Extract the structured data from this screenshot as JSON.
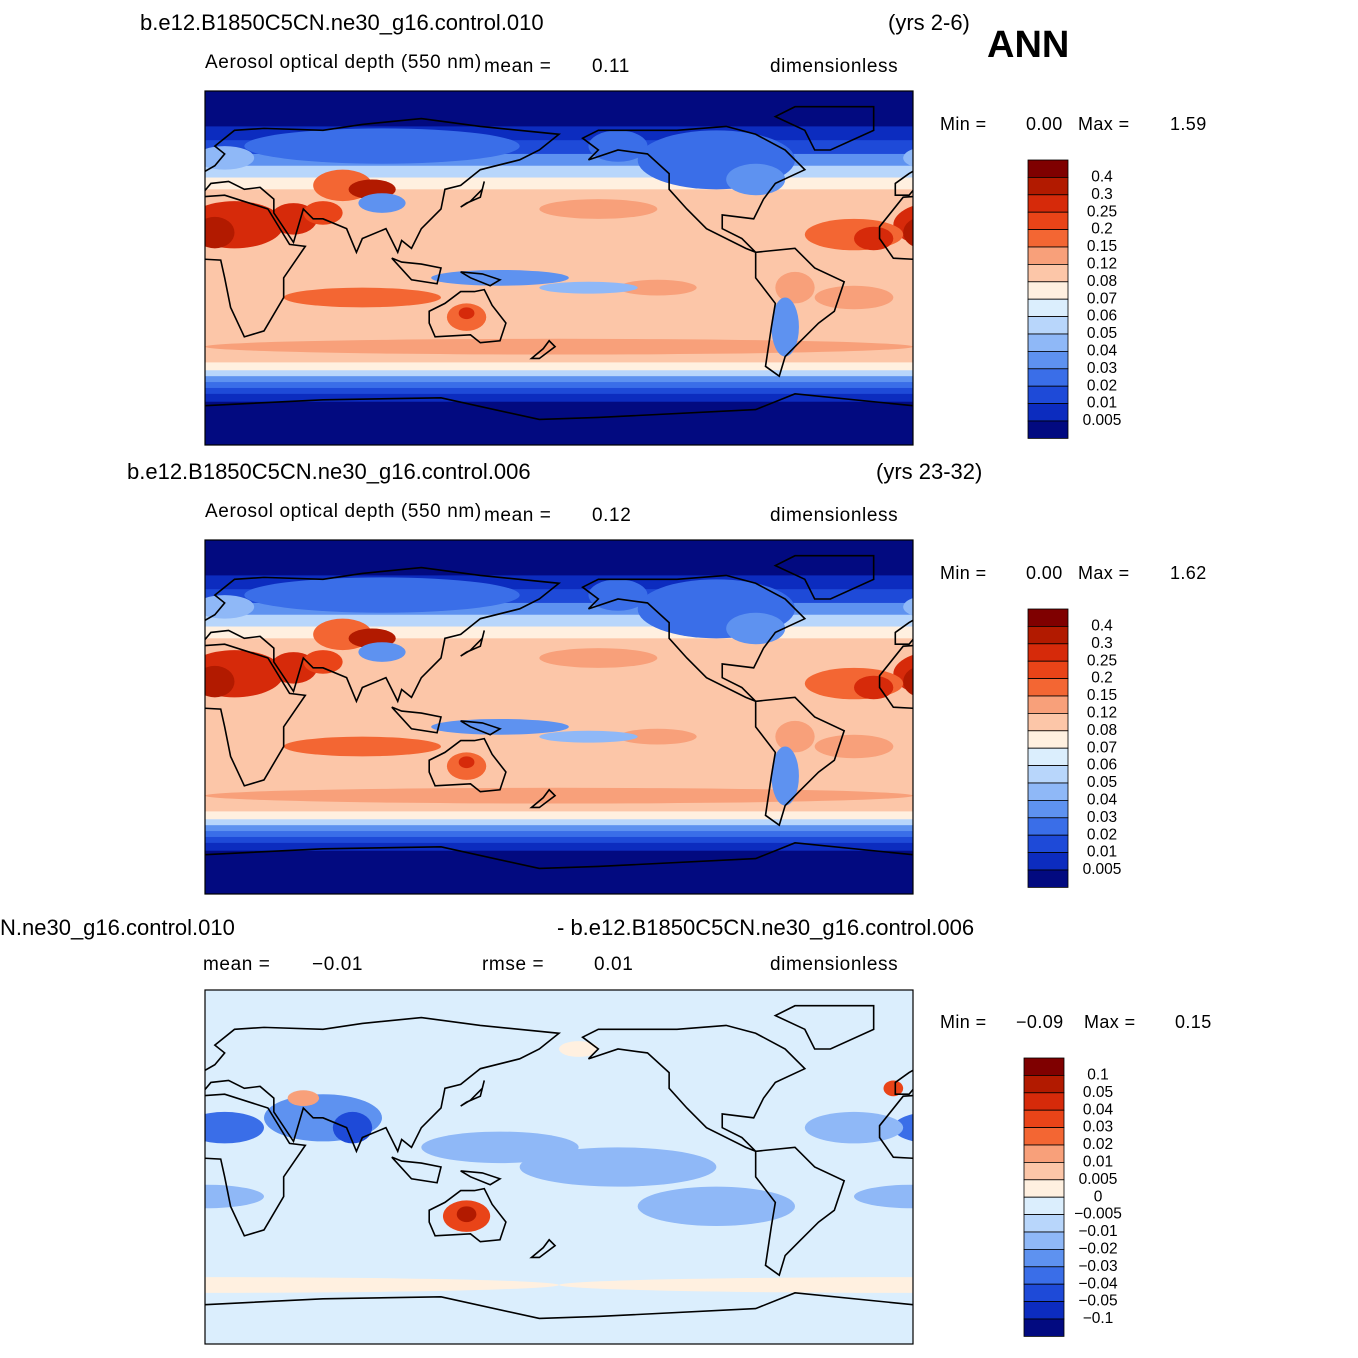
{
  "header": {
    "season": "ANN"
  },
  "panels": [
    {
      "title_left": "b.e12.B1850C5CN.ne30_g16.control.010",
      "title_right": "(yrs 2-6)",
      "variable": "Aerosol optical depth (550 nm)",
      "mean_label": "mean =",
      "mean": "0.11",
      "units": "dimensionless",
      "min_label": "Min =",
      "min": "0.00",
      "max_label": "Max =",
      "max": "1.59",
      "colorbar": {
        "labels": [
          "0.4",
          "0.3",
          "0.25",
          "0.2",
          "0.15",
          "0.12",
          "0.08",
          "0.07",
          "0.06",
          "0.05",
          "0.04",
          "0.03",
          "0.02",
          "0.01",
          "0.005"
        ],
        "colors": [
          "#7f0000",
          "#b21a00",
          "#d62a0a",
          "#e94418",
          "#f36633",
          "#f8a07a",
          "#fcc6a8",
          "#fff0e0",
          "#dbeefd",
          "#b8d6fb",
          "#8fb8f7",
          "#5e92f0",
          "#3a6ee8",
          "#1e4ad8",
          "#0c2cbf",
          "#020a80"
        ]
      }
    },
    {
      "title_left": "b.e12.B1850C5CN.ne30_g16.control.006",
      "title_right": "(yrs 23-32)",
      "variable": "Aerosol optical depth (550 nm)",
      "mean_label": "mean =",
      "mean": "0.12",
      "units": "dimensionless",
      "min_label": "Min =",
      "min": "0.00",
      "max_label": "Max =",
      "max": "1.62",
      "colorbar": {
        "labels": [
          "0.4",
          "0.3",
          "0.25",
          "0.2",
          "0.15",
          "0.12",
          "0.08",
          "0.07",
          "0.06",
          "0.05",
          "0.04",
          "0.03",
          "0.02",
          "0.01",
          "0.005"
        ],
        "colors": [
          "#7f0000",
          "#b21a00",
          "#d62a0a",
          "#e94418",
          "#f36633",
          "#f8a07a",
          "#fcc6a8",
          "#fff0e0",
          "#dbeefd",
          "#b8d6fb",
          "#8fb8f7",
          "#5e92f0",
          "#3a6ee8",
          "#1e4ad8",
          "#0c2cbf",
          "#020a80"
        ]
      }
    },
    {
      "title_left": "N.ne30_g16.control.010",
      "title_right": "- b.e12.B1850C5CN.ne30_g16.control.006",
      "mean_label": "mean =",
      "mean": "−0.01",
      "rmse_label": "rmse =",
      "rmse": "0.01",
      "units": "dimensionless",
      "min_label": "Min =",
      "min": "−0.09",
      "max_label": "Max =",
      "max": "0.15",
      "colorbar": {
        "labels": [
          "0.1",
          "0.05",
          "0.04",
          "0.03",
          "0.02",
          "0.01",
          "0.005",
          "0",
          "−0.005",
          "−0.01",
          "−0.02",
          "−0.03",
          "−0.04",
          "−0.05",
          "−0.1"
        ],
        "colors": [
          "#7f0000",
          "#b21a00",
          "#d62a0a",
          "#e94418",
          "#f36633",
          "#f8a07a",
          "#fcc6a8",
          "#fff0e0",
          "#dbeefd",
          "#b8d6fb",
          "#8fb8f7",
          "#5e92f0",
          "#3a6ee8",
          "#1e4ad8",
          "#0c2cbf",
          "#020a80"
        ]
      }
    }
  ]
}
